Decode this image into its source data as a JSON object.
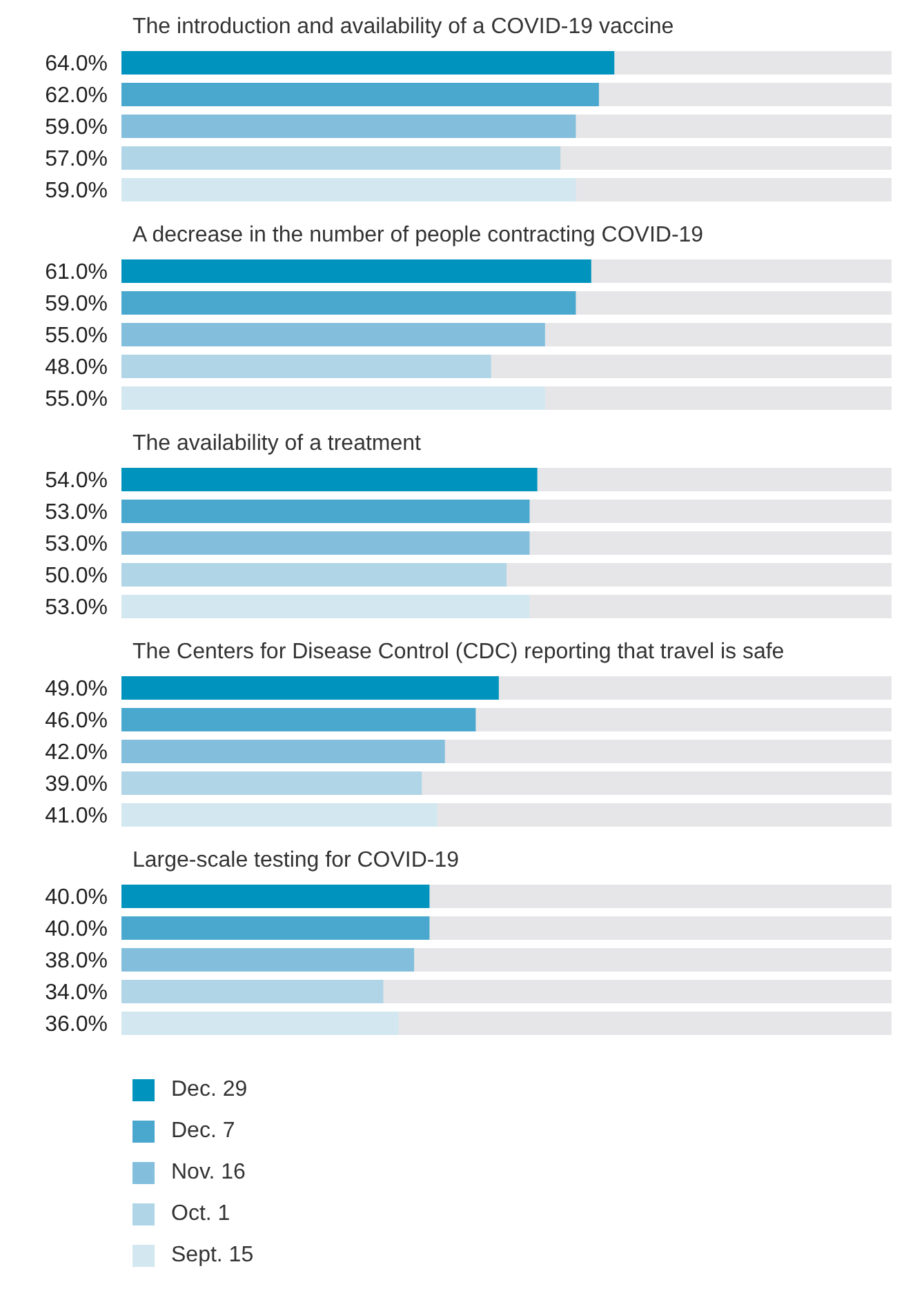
{
  "chart_data": {
    "type": "bar",
    "orientation": "horizontal",
    "categories": [
      "The introduction and availability of a COVID-19 vaccine",
      "A decrease in the number of people contracting COVID-19",
      "The availability of a treatment",
      "The Centers for Disease Control (CDC) reporting that travel is safe",
      "Large-scale testing for COVID-19"
    ],
    "xlim": [
      0,
      100
    ],
    "tick_labels": false,
    "legend": "bottom",
    "grid": false,
    "series": [
      {
        "name": "Dec. 29",
        "color": "#0093bd",
        "values": [
          64,
          61,
          54,
          49,
          40
        ],
        "value_labels": [
          "64.0%",
          "61.0%",
          "54.0%",
          "49.0%",
          "40.0%"
        ]
      },
      {
        "name": "Dec. 7",
        "color": "#4aa8cf",
        "values": [
          62,
          59,
          53,
          46,
          40
        ],
        "value_labels": [
          "62.0%",
          "59.0%",
          "53.0%",
          "46.0%",
          "40.0%"
        ]
      },
      {
        "name": "Nov. 16",
        "color": "#83bfdd",
        "values": [
          59,
          55,
          53,
          42,
          38
        ],
        "value_labels": [
          "59.0%",
          "55.0%",
          "53.0%",
          "42.0%",
          "38.0%"
        ]
      },
      {
        "name": "Oct. 1",
        "color": "#afd5e7",
        "values": [
          57,
          48,
          50,
          39,
          34
        ],
        "value_labels": [
          "57.0%",
          "48.0%",
          "50.0%",
          "39.0%",
          "34.0%"
        ]
      },
      {
        "name": "Sept. 15",
        "color": "#d3e7f0",
        "values": [
          59,
          55,
          53,
          41,
          36
        ],
        "value_labels": [
          "59.0%",
          "55.0%",
          "53.0%",
          "41.0%",
          "36.0%"
        ]
      }
    ]
  }
}
